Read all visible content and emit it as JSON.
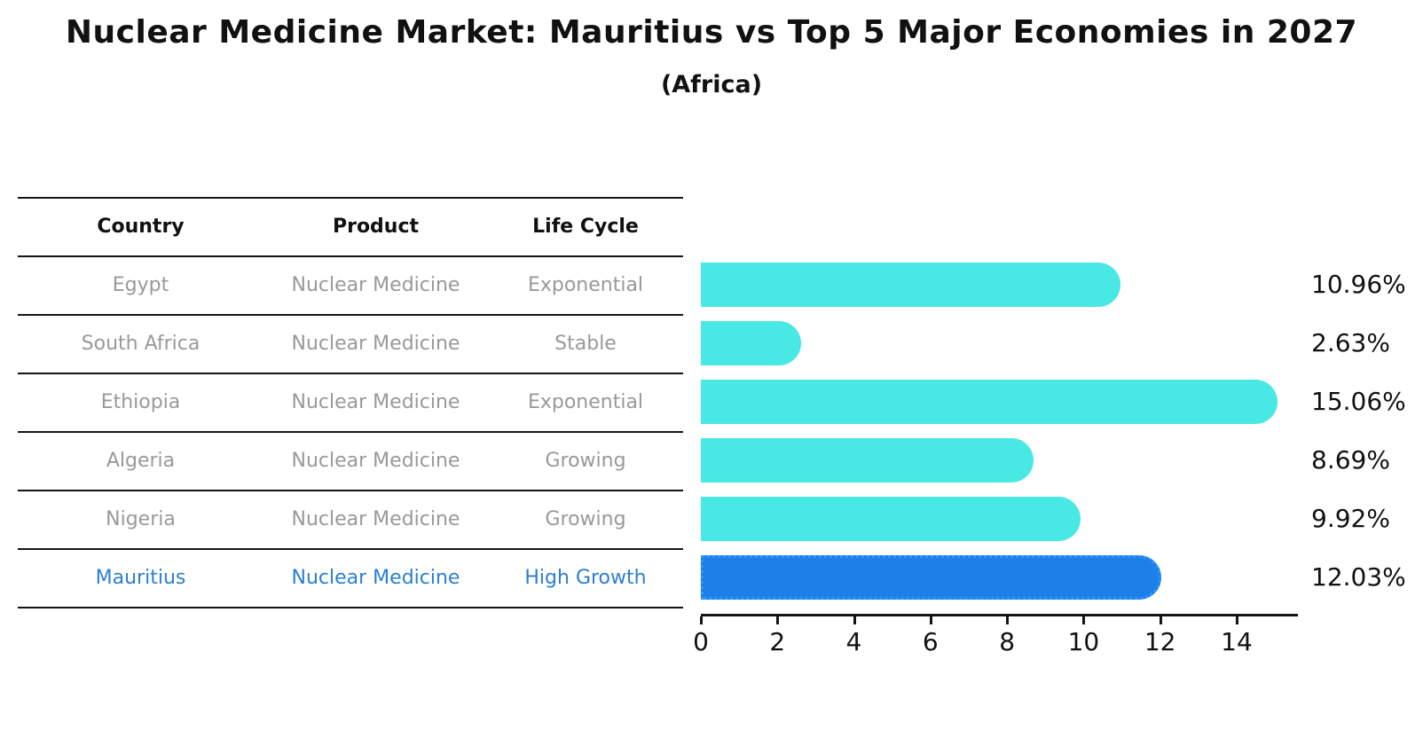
{
  "title": "Nuclear Medicine Market: Mauritius vs Top 5 Major Economies in 2027",
  "subtitle": "(Africa)",
  "table": {
    "headers": [
      "Country",
      "Product",
      "Life Cycle"
    ],
    "rows": [
      {
        "country": "Egypt",
        "product": "Nuclear Medicine",
        "life_cycle": "Exponential",
        "highlight": false
      },
      {
        "country": "South Africa",
        "product": "Nuclear Medicine",
        "life_cycle": "Stable",
        "highlight": false
      },
      {
        "country": "Ethiopia",
        "product": "Nuclear Medicine",
        "life_cycle": "Exponential",
        "highlight": false
      },
      {
        "country": "Algeria",
        "product": "Nuclear Medicine",
        "life_cycle": "Growing",
        "highlight": false
      },
      {
        "country": "Nigeria",
        "product": "Nuclear Medicine",
        "life_cycle": "Growing",
        "highlight": false
      },
      {
        "country": "Mauritius",
        "product": "Nuclear Medicine",
        "life_cycle": "High Growth",
        "highlight": true
      }
    ]
  },
  "chart_data": {
    "type": "bar",
    "orientation": "horizontal",
    "title": "Nuclear Medicine Market: Mauritius vs Top 5 Major Economies in 2027",
    "subtitle": "(Africa)",
    "categories": [
      "Egypt",
      "South Africa",
      "Ethiopia",
      "Algeria",
      "Nigeria",
      "Mauritius"
    ],
    "values": [
      10.96,
      2.63,
      15.06,
      8.69,
      9.92,
      12.03
    ],
    "value_labels": [
      "10.96%",
      "2.63%",
      "15.06%",
      "8.69%",
      "9.92%",
      "12.03%"
    ],
    "xlabel": "",
    "ylabel": "",
    "xticks": [
      "0",
      "2",
      "4",
      "6",
      "8",
      "10",
      "12",
      "14"
    ],
    "xtick_values": [
      0,
      2,
      4,
      6,
      8,
      10,
      12,
      14
    ],
    "xlim": [
      0,
      15.6
    ],
    "grid": false,
    "legend": "none",
    "bar_color": "#48e8e4",
    "highlight_bar_color": "#1e7fe8",
    "highlight_border_color": "#2b96ff",
    "highlight_index": 5
  },
  "colors": {
    "title_text": "#111111",
    "table_line": "#141414",
    "table_text": "#999999",
    "highlight_text": "#2b7fd0",
    "value_label_text": "#111111"
  }
}
